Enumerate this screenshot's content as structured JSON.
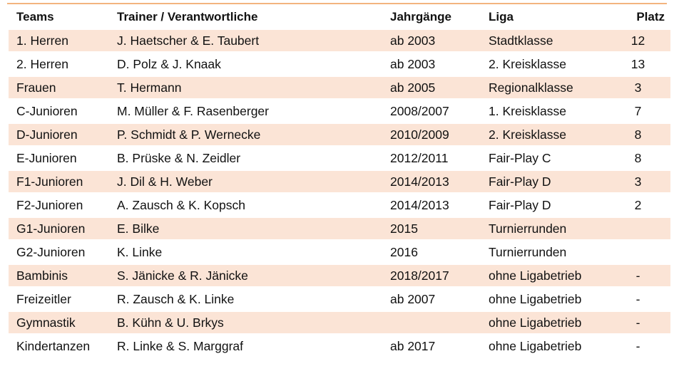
{
  "headers": {
    "teams": "Teams",
    "trainer": "Trainer / Verantwortliche",
    "jahrgaenge": "Jahrgänge",
    "liga": "Liga",
    "platz": "Platz"
  },
  "rows": [
    {
      "team": "1. Herren",
      "trainer": "J. Haetscher & E. Taubert",
      "jahrgaenge": "ab 2003",
      "liga": "Stadtklasse",
      "platz": "12"
    },
    {
      "team": "2. Herren",
      "trainer": "D. Polz & J. Knaak",
      "jahrgaenge": "ab 2003",
      "liga": "2. Kreisklasse",
      "platz": "13"
    },
    {
      "team": "Frauen",
      "trainer": "T. Hermann",
      "jahrgaenge": "ab 2005",
      "liga": "Regionalklasse",
      "platz": "3"
    },
    {
      "team": "C-Junioren",
      "trainer": "M. Müller & F. Rasenberger",
      "jahrgaenge": "2008/2007",
      "liga": "1. Kreisklasse",
      "platz": "7"
    },
    {
      "team": "D-Junioren",
      "trainer": "P. Schmidt & P. Wernecke",
      "jahrgaenge": "2010/2009",
      "liga": "2. Kreisklasse",
      "platz": "8"
    },
    {
      "team": "E-Junioren",
      "trainer": "B. Prüske & N. Zeidler",
      "jahrgaenge": "2012/2011",
      "liga": "Fair-Play C",
      "platz": "8"
    },
    {
      "team": "F1-Junioren",
      "trainer": "J. Dil & H. Weber",
      "jahrgaenge": "2014/2013",
      "liga": "Fair-Play D",
      "platz": "3"
    },
    {
      "team": "F2-Junioren",
      "trainer": "A. Zausch & K. Kopsch",
      "jahrgaenge": "2014/2013",
      "liga": "Fair-Play D",
      "platz": "2"
    },
    {
      "team": "G1-Junioren",
      "trainer": "E. Bilke",
      "jahrgaenge": "2015",
      "liga": "Turnierrunden",
      "platz": ""
    },
    {
      "team": "G2-Junioren",
      "trainer": "K. Linke",
      "jahrgaenge": "2016",
      "liga": "Turnierrunden",
      "platz": ""
    },
    {
      "team": "Bambinis",
      "trainer": "S. Jänicke & R. Jänicke",
      "jahrgaenge": "2018/2017",
      "liga": "ohne Ligabetrieb",
      "platz": "-"
    },
    {
      "team": "Freizeitler",
      "trainer": "R. Zausch & K. Linke",
      "jahrgaenge": "ab 2007",
      "liga": "ohne Ligabetrieb",
      "platz": "-"
    },
    {
      "team": "Gymnastik",
      "trainer": "B. Kühn & U. Brkys",
      "jahrgaenge": "",
      "liga": "ohne Ligabetrieb",
      "platz": "-"
    },
    {
      "team": "Kindertanzen",
      "trainer": "R. Linke & S. Marggraf",
      "jahrgaenge": "ab 2017",
      "liga": "ohne Ligabetrieb",
      "platz": "-"
    }
  ],
  "colors": {
    "row_shade": "#fbe4d6",
    "top_rule": "#f3b47e"
  }
}
